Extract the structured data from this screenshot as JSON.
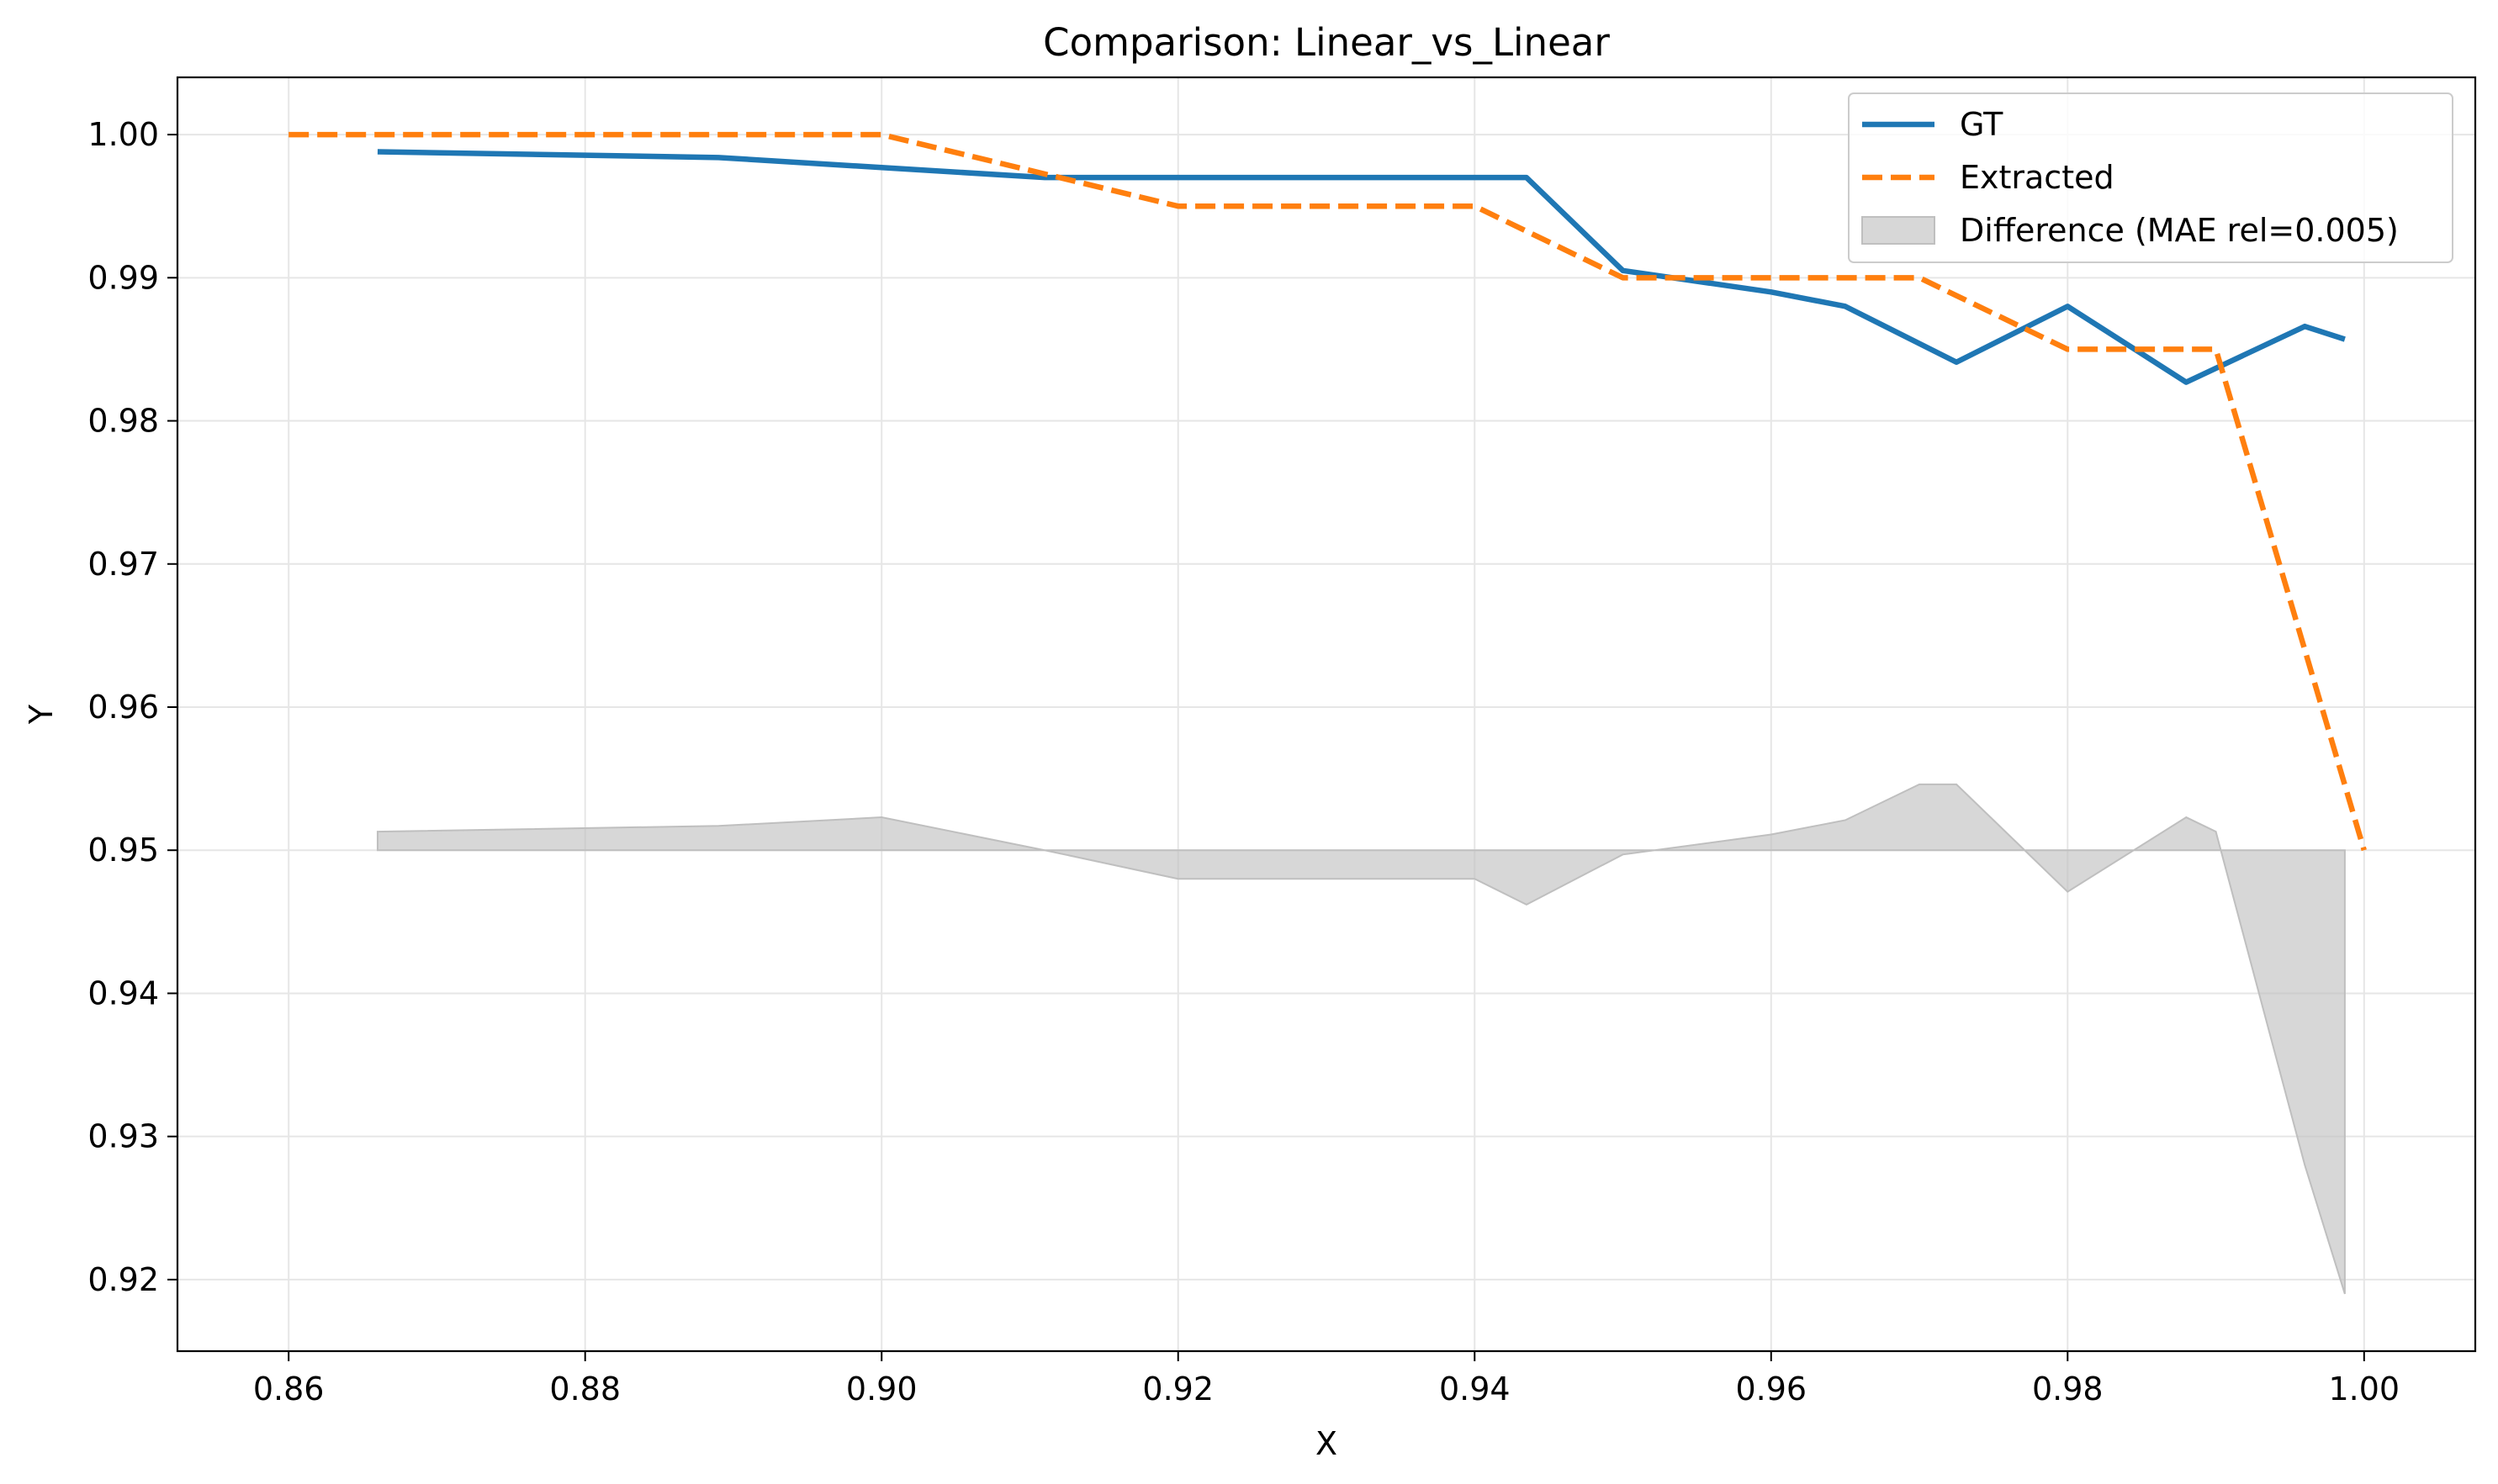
{
  "chart_data": {
    "type": "line",
    "title": "Comparison: Linear_vs_Linear",
    "xlabel": "X",
    "ylabel": "Y",
    "xlim": [
      0.8525,
      1.0075
    ],
    "ylim": [
      0.915,
      1.004
    ],
    "x_ticks": [
      "0.86",
      "0.88",
      "0.90",
      "0.92",
      "0.94",
      "0.96",
      "0.98",
      "1.00"
    ],
    "y_ticks": [
      "0.92",
      "0.93",
      "0.94",
      "0.95",
      "0.96",
      "0.97",
      "0.98",
      "0.99",
      "1.00"
    ],
    "grid": true,
    "legend_position": "top-right",
    "series": [
      {
        "name": "GT",
        "color": "#1f77b4",
        "style": "solid",
        "x": [
          0.866,
          0.889,
          0.9,
          0.911,
          0.92,
          0.94,
          0.9435,
          0.95,
          0.96,
          0.965,
          0.9725,
          0.98,
          0.988,
          0.996,
          0.9987
        ],
        "y": [
          0.9988,
          0.9984,
          0.9977,
          0.997,
          0.997,
          0.997,
          0.997,
          0.9905,
          0.989,
          0.988,
          0.9841,
          0.988,
          0.9827,
          0.9866,
          0.9857
        ]
      },
      {
        "name": "Extracted",
        "color": "#ff7f0e",
        "style": "dashed",
        "x": [
          0.86,
          0.9,
          0.92,
          0.94,
          0.95,
          0.97,
          0.98,
          0.99,
          1.0
        ],
        "y": [
          1.0,
          1.0,
          0.995,
          0.995,
          0.99,
          0.99,
          0.985,
          0.985,
          0.95
        ]
      }
    ],
    "difference": {
      "name": "Difference (MAE rel=0.005)",
      "color": "#bfbfbf",
      "baseline": 0.95,
      "x": [
        0.866,
        0.889,
        0.9,
        0.911,
        0.92,
        0.94,
        0.9435,
        0.95,
        0.96,
        0.965,
        0.97,
        0.9725,
        0.98,
        0.988,
        0.99,
        0.996,
        0.9987
      ],
      "y": [
        0.9513,
        0.9517,
        0.9523,
        0.95,
        0.948,
        0.948,
        0.9462,
        0.9497,
        0.9511,
        0.9521,
        0.9546,
        0.9546,
        0.9471,
        0.9523,
        0.9513,
        0.928,
        0.919
      ]
    }
  }
}
